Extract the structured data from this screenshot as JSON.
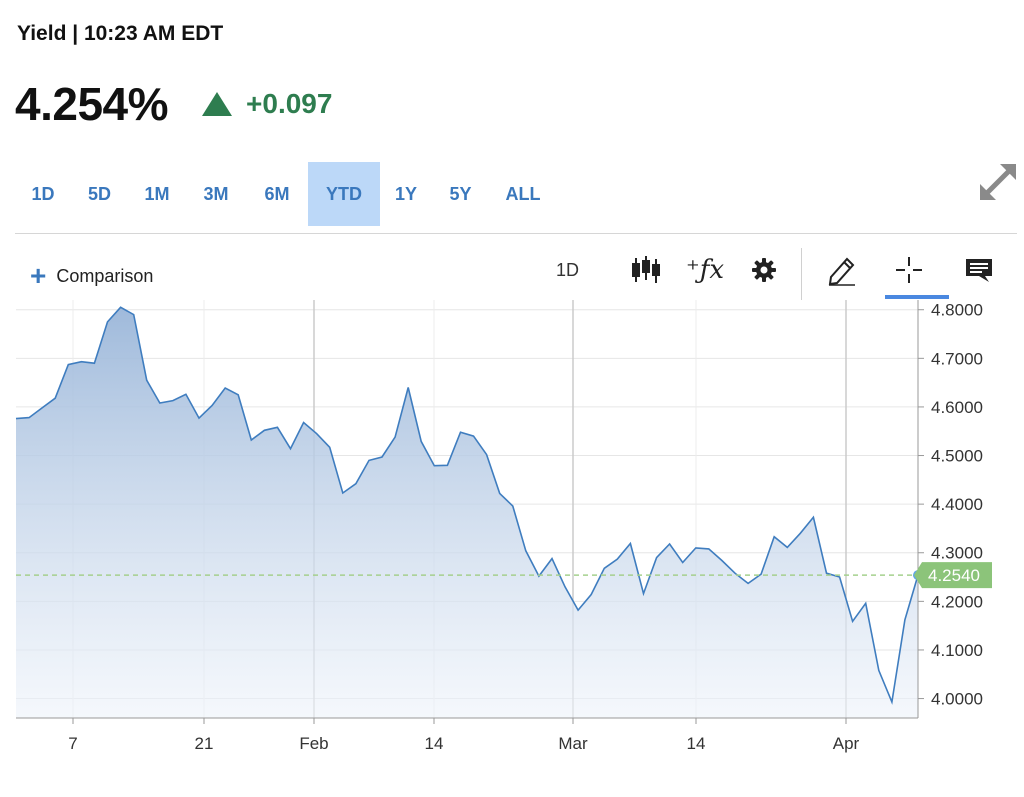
{
  "header": {
    "title": "Yield | 10:23 AM EDT"
  },
  "quote": {
    "price": "4.254%",
    "change": "+0.097",
    "direction": "up",
    "change_color": "#2e7d4f"
  },
  "ranges": [
    {
      "label": "1D",
      "active": false
    },
    {
      "label": "5D",
      "active": false
    },
    {
      "label": "1M",
      "active": false
    },
    {
      "label": "3M",
      "active": false
    },
    {
      "label": "6M",
      "active": false
    },
    {
      "label": "YTD",
      "active": true
    },
    {
      "label": "1Y",
      "active": false
    },
    {
      "label": "5Y",
      "active": false
    },
    {
      "label": "ALL",
      "active": false
    }
  ],
  "toolbar": {
    "comparison_label": "Comparison",
    "interval_label": "1D",
    "icons": [
      "candlestick-icon",
      "fx-indicator-icon",
      "gear-icon",
      "pencil-icon",
      "crosshair-icon",
      "comment-icon"
    ],
    "accent": "#4a88e0"
  },
  "chart_data": {
    "type": "area",
    "x_tick_labels": [
      "7",
      "21",
      "Feb",
      "14",
      "Mar",
      "14",
      "Apr"
    ],
    "y_tick_labels": [
      "4.8000",
      "4.7000",
      "4.6000",
      "4.5000",
      "4.4000",
      "4.3000",
      "4.2000",
      "4.1000",
      "4.0000"
    ],
    "ylim": [
      3.96,
      4.82
    ],
    "grid": true,
    "line_color": "#3f7dbf",
    "fill_color": "#a9c1de",
    "current_value": 4.254,
    "current_label": "4.2540",
    "current_badge_color": "#8cc47a",
    "values": [
      4.576,
      4.578,
      4.598,
      4.618,
      4.687,
      4.693,
      4.69,
      4.775,
      4.805,
      4.79,
      4.655,
      4.608,
      4.613,
      4.626,
      4.577,
      4.603,
      4.639,
      4.625,
      4.532,
      4.552,
      4.558,
      4.514,
      4.568,
      4.545,
      4.517,
      4.423,
      4.442,
      4.49,
      4.497,
      4.538,
      4.64,
      4.529,
      4.479,
      4.48,
      4.548,
      4.54,
      4.502,
      4.422,
      4.396,
      4.304,
      4.252,
      4.288,
      4.23,
      4.182,
      4.214,
      4.268,
      4.287,
      4.319,
      4.216,
      4.29,
      4.318,
      4.28,
      4.31,
      4.308,
      4.284,
      4.258,
      4.237,
      4.256,
      4.333,
      4.311,
      4.34,
      4.373,
      4.258,
      4.25,
      4.159,
      4.196,
      4.058,
      3.993,
      4.162,
      4.254
    ]
  }
}
